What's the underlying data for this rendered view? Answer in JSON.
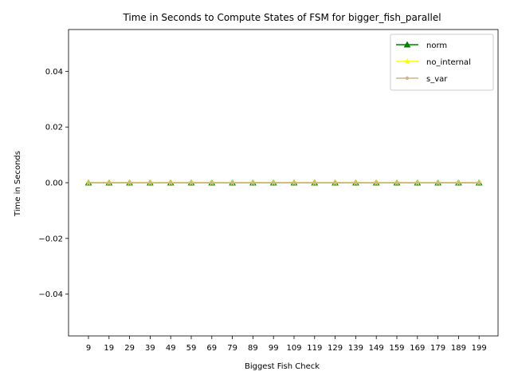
{
  "chart_data": {
    "type": "line",
    "title": "Time in Seconds to Compute States of FSM for bigger_fish_parallel",
    "xlabel": "Biggest Fish Check",
    "ylabel": "Time in Seconds",
    "categories": [
      "9",
      "19",
      "29",
      "39",
      "49",
      "59",
      "69",
      "79",
      "89",
      "99",
      "109",
      "119",
      "129",
      "139",
      "149",
      "159",
      "169",
      "179",
      "189",
      "199"
    ],
    "ylim": [
      -0.055,
      0.055
    ],
    "yticks": [
      -0.04,
      -0.02,
      0.0,
      0.02,
      0.04
    ],
    "ytick_labels": [
      "−0.04",
      "−0.02",
      "0.00",
      "0.02",
      "0.04"
    ],
    "grid": false,
    "legend_position": "top-right",
    "series": [
      {
        "name": "norm",
        "color": "#008000",
        "marker": "triangle",
        "values": [
          0,
          0,
          0,
          0,
          0,
          0,
          0,
          0,
          0,
          0,
          0,
          0,
          0,
          0,
          0,
          0,
          0,
          0,
          0,
          0
        ]
      },
      {
        "name": "no_internal",
        "color": "#ffff00",
        "marker": "star",
        "values": [
          0,
          0,
          0,
          0,
          0,
          0,
          0,
          0,
          0,
          0,
          0,
          0,
          0,
          0,
          0,
          0,
          0,
          0,
          0,
          0
        ]
      },
      {
        "name": "s_var",
        "color": "#d2b48c",
        "marker": "point",
        "values": [
          0,
          0,
          0,
          0,
          0,
          0,
          0,
          0,
          0,
          0,
          0,
          0,
          0,
          0,
          0,
          0,
          0,
          0,
          0,
          0
        ]
      }
    ]
  }
}
